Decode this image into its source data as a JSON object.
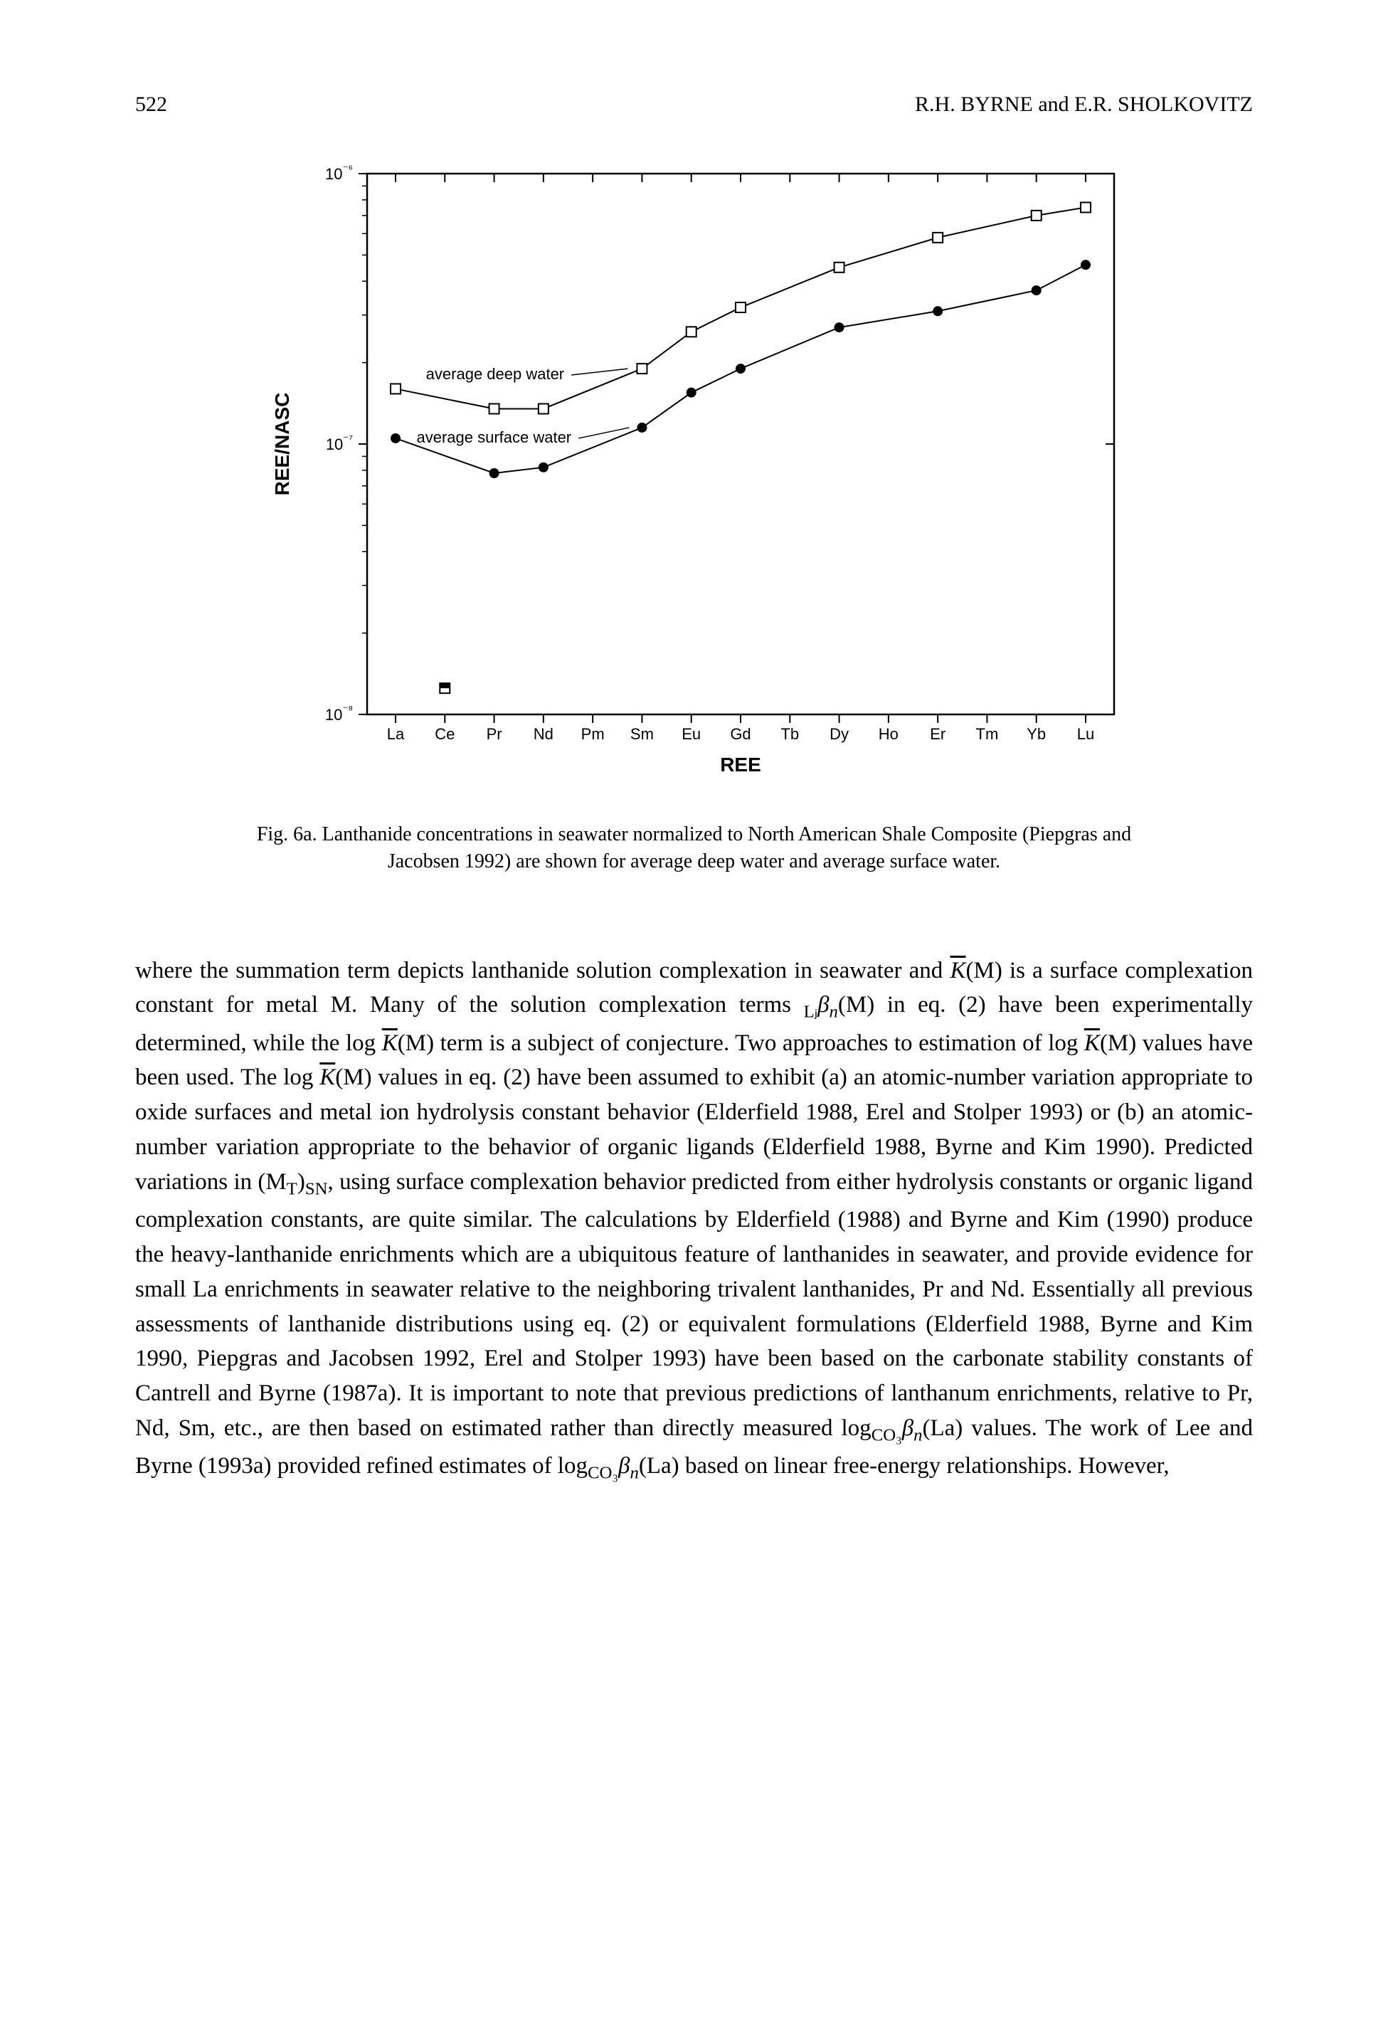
{
  "header": {
    "page_number": "522",
    "authors": "R.H. BYRNE and E.R. SHOLKOVITZ"
  },
  "chart": {
    "type": "line",
    "xlabel": "REE",
    "ylabel": "REE/NASC",
    "xlabel_fontsize": 28,
    "ylabel_fontsize": 28,
    "tick_fontsize": 22,
    "label_fontsize": 22,
    "categories": [
      "La",
      "Ce",
      "Pr",
      "Nd",
      "Pm",
      "Sm",
      "Eu",
      "Gd",
      "Tb",
      "Dy",
      "Ho",
      "Er",
      "Tm",
      "Yb",
      "Lu"
    ],
    "y_ticks": [
      "10⁻⁸",
      "10⁻⁷",
      "10⁻⁶"
    ],
    "y_tick_values": [
      1e-08,
      1e-07,
      1e-06
    ],
    "ylim": [
      1e-08,
      1e-06
    ],
    "series": [
      {
        "name": "average deep water",
        "label": "average deep water",
        "marker": "square-open",
        "color": "#000000",
        "line_width": 2,
        "values": [
          1.6e-07,
          null,
          1.35e-07,
          1.35e-07,
          null,
          1.9e-07,
          2.6e-07,
          3.2e-07,
          null,
          4.5e-07,
          null,
          5.8e-07,
          null,
          7e-07,
          7.5e-07
        ]
      },
      {
        "name": "average surface water",
        "label": "average surface water",
        "marker": "circle-filled",
        "color": "#000000",
        "line_width": 2,
        "values": [
          1.05e-07,
          null,
          7.8e-08,
          8.2e-08,
          null,
          1.15e-07,
          1.55e-07,
          1.9e-07,
          null,
          2.7e-07,
          null,
          3.1e-07,
          null,
          3.7e-07,
          4.6e-07
        ]
      },
      {
        "name": "ce-point",
        "marker": "partial-filled",
        "color": "#000000",
        "values": [
          null,
          1.25e-08,
          null,
          null,
          null,
          null,
          null,
          null,
          null,
          null,
          null,
          null,
          null,
          null,
          null
        ]
      }
    ],
    "background_color": "#ffffff",
    "axis_color": "#000000",
    "axis_width": 2.5
  },
  "caption": {
    "text_line1": "Fig. 6a. Lanthanide concentrations in seawater normalized to North American Shale Composite (Piepgras and",
    "text_line2": "Jacobsen 1992) are shown for average deep water and average surface water."
  },
  "body": {
    "paragraph": "where the summation term depicts lanthanide solution complexation in seawater and K̄(M) is a surface complexation constant for metal M. Many of the solution complexation terms ₗⱼβₙ(M) in eq. (2) have been experimentally determined, while the log K̄(M) term is a subject of conjecture. Two approaches to estimation of log K̄(M) values have been used. The log K̄(M) values in eq. (2) have been assumed to exhibit (a) an atomic-number variation appropriate to oxide surfaces and metal ion hydrolysis constant behavior (Elderfield 1988, Erel and Stolper 1993) or (b) an atomic-number variation appropriate to the behavior of organic ligands (Elderfield 1988, Byrne and Kim 1990). Predicted variations in (M_T)_SN, using surface complexation behavior predicted from either hydrolysis constants or organic ligand complexation constants, are quite similar. The calculations by Elderfield (1988) and Byrne and Kim (1990) produce the heavy-lanthanide enrichments which are a ubiquitous feature of lanthanides in seawater, and provide evidence for small La enrichments in seawater relative to the neighboring trivalent lanthanides, Pr and Nd. Essentially all previous assessments of lanthanide distributions using eq. (2) or equivalent formulations (Elderfield 1988, Byrne and Kim 1990, Piepgras and Jacobsen 1992, Erel and Stolper 1993) have been based on the carbonate stability constants of Cantrell and Byrne (1987a). It is important to note that previous predictions of lanthanum enrichments, relative to Pr, Nd, Sm, etc., are then based on estimated rather than directly measured log_CO₃βₙ(La) values. The work of Lee and Byrne (1993a) provided refined estimates of log_CO₃βₙ(La) based on linear free-energy relationships. However,"
  }
}
